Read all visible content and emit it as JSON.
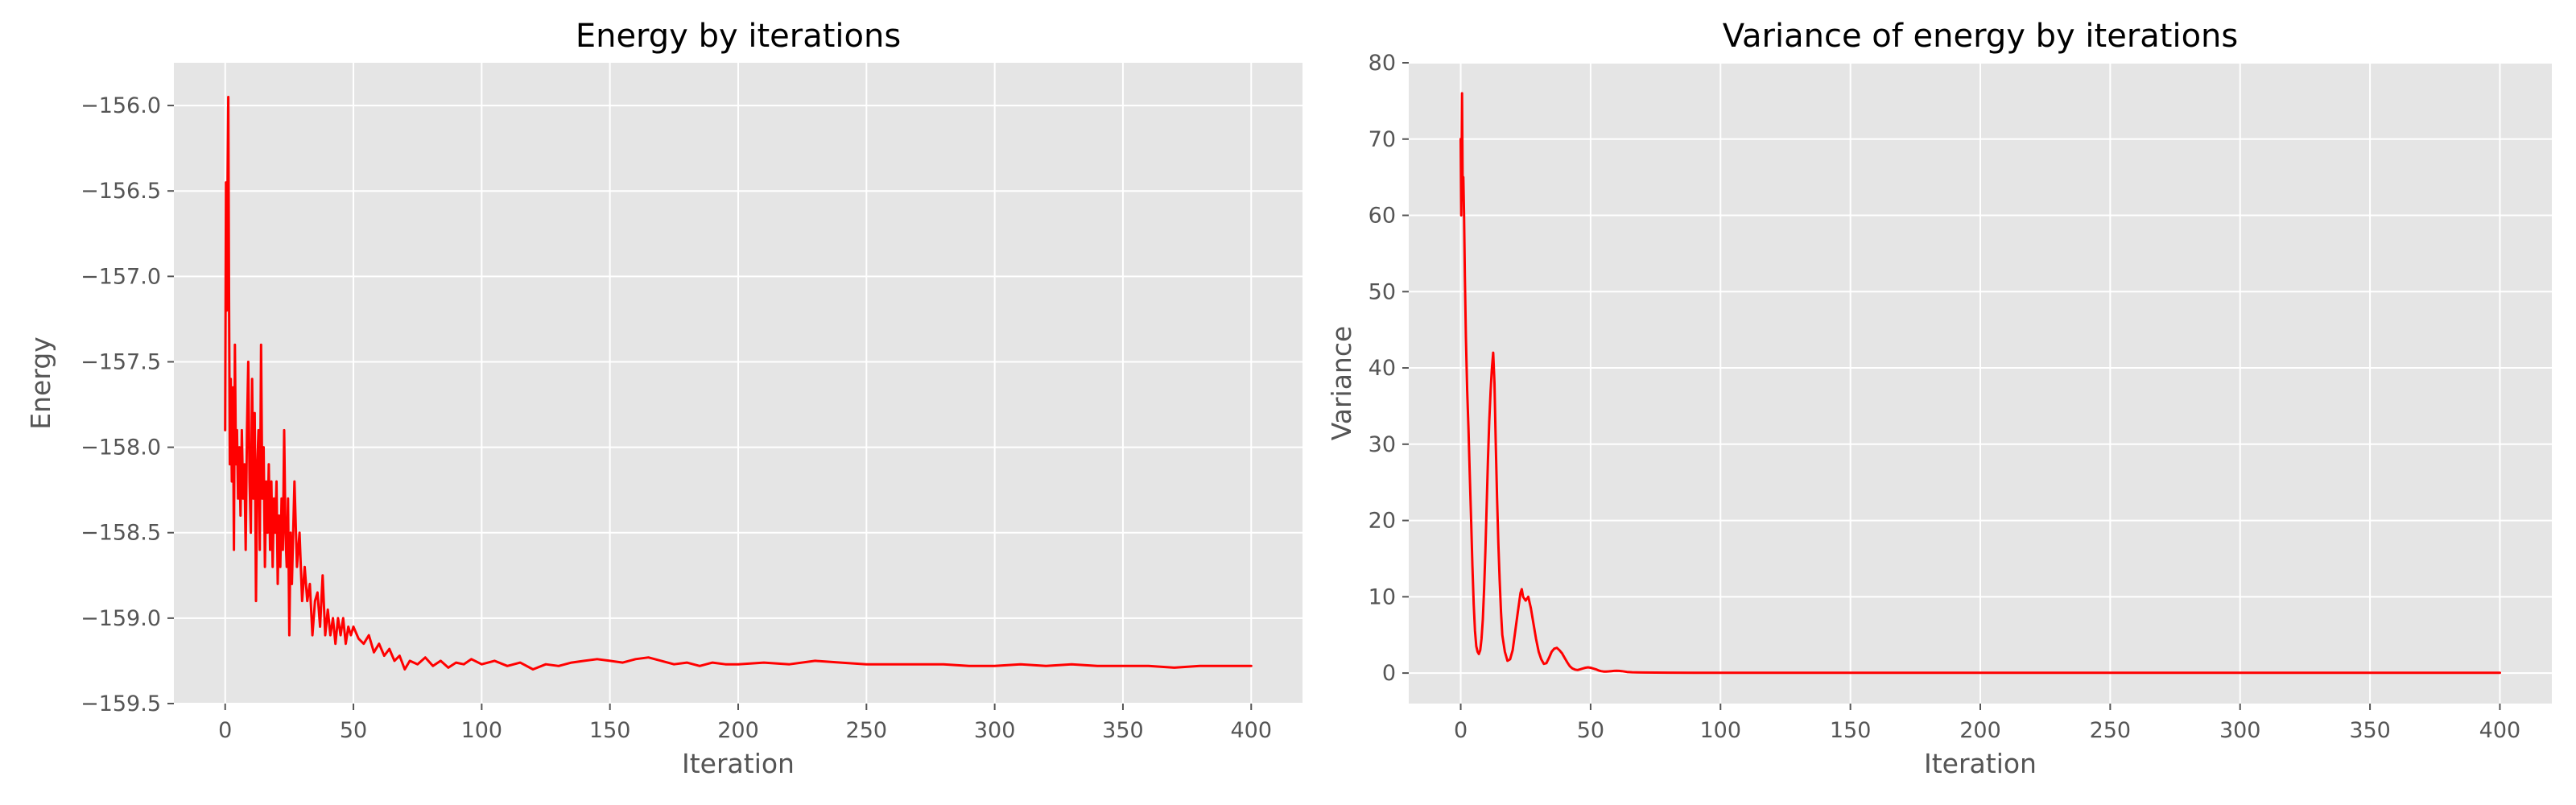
{
  "chart_data": [
    {
      "type": "line",
      "title": "Energy by iterations",
      "xlabel": "Iteration",
      "ylabel": "Energy",
      "xlim": [
        -20,
        420
      ],
      "ylim": [
        -159.5,
        -155.75
      ],
      "x_ticks": [
        0,
        50,
        100,
        150,
        200,
        250,
        300,
        350,
        400
      ],
      "y_ticks": [
        -159.5,
        -159.0,
        -158.5,
        -158.0,
        -157.5,
        -157.0,
        -156.5,
        -156.0
      ],
      "y_tick_labels": [
        "−159.5",
        "−159.0",
        "−158.5",
        "−158.0",
        "−157.5",
        "−157.0",
        "−156.5",
        "−156.0"
      ],
      "grid": true,
      "series": [
        {
          "color": "#ff0000",
          "points": [
            [
              0,
              -157.9
            ],
            [
              0.3,
              -156.45
            ],
            [
              0.6,
              -157.2
            ],
            [
              0.9,
              -156.5
            ],
            [
              1.2,
              -155.95
            ],
            [
              1.5,
              -157.1
            ],
            [
              1.8,
              -158.1
            ],
            [
              2.2,
              -157.6
            ],
            [
              2.6,
              -158.2
            ],
            [
              3.0,
              -157.65
            ],
            [
              3.4,
              -158.6
            ],
            [
              3.8,
              -157.4
            ],
            [
              4.2,
              -158.1
            ],
            [
              4.6,
              -157.9
            ],
            [
              5.0,
              -158.3
            ],
            [
              5.5,
              -158.0
            ],
            [
              6.0,
              -158.4
            ],
            [
              6.5,
              -157.9
            ],
            [
              7.0,
              -158.3
            ],
            [
              7.5,
              -158.1
            ],
            [
              8.0,
              -158.6
            ],
            [
              8.5,
              -157.9
            ],
            [
              9.0,
              -157.5
            ],
            [
              9.5,
              -158.2
            ],
            [
              10.0,
              -158.5
            ],
            [
              10.5,
              -157.6
            ],
            [
              11.0,
              -158.3
            ],
            [
              11.5,
              -157.8
            ],
            [
              12.0,
              -158.9
            ],
            [
              12.5,
              -158.1
            ],
            [
              13.0,
              -157.9
            ],
            [
              13.5,
              -158.6
            ],
            [
              14.0,
              -157.4
            ],
            [
              14.5,
              -158.3
            ],
            [
              15.0,
              -158.0
            ],
            [
              15.5,
              -158.7
            ],
            [
              16.0,
              -158.2
            ],
            [
              16.5,
              -158.5
            ],
            [
              17.0,
              -158.1
            ],
            [
              17.5,
              -158.6
            ],
            [
              18.0,
              -158.2
            ],
            [
              18.5,
              -158.7
            ],
            [
              19.0,
              -158.3
            ],
            [
              19.5,
              -158.5
            ],
            [
              20.0,
              -158.2
            ],
            [
              20.5,
              -158.8
            ],
            [
              21.0,
              -158.4
            ],
            [
              21.5,
              -158.7
            ],
            [
              22.0,
              -158.3
            ],
            [
              22.5,
              -158.6
            ],
            [
              23.0,
              -157.9
            ],
            [
              23.5,
              -158.5
            ],
            [
              24.0,
              -158.7
            ],
            [
              24.5,
              -158.3
            ],
            [
              25.0,
              -159.1
            ],
            [
              25.5,
              -158.5
            ],
            [
              26.0,
              -158.8
            ],
            [
              27.0,
              -158.2
            ],
            [
              28.0,
              -158.7
            ],
            [
              29.0,
              -158.5
            ],
            [
              30.0,
              -158.9
            ],
            [
              31.0,
              -158.7
            ],
            [
              32.0,
              -158.9
            ],
            [
              33.0,
              -158.8
            ],
            [
              34.0,
              -159.1
            ],
            [
              35.0,
              -158.9
            ],
            [
              36.0,
              -158.85
            ],
            [
              37.0,
              -159.05
            ],
            [
              38.0,
              -158.75
            ],
            [
              39.0,
              -159.1
            ],
            [
              40.0,
              -158.95
            ],
            [
              41.0,
              -159.1
            ],
            [
              42.0,
              -159.0
            ],
            [
              43.0,
              -159.15
            ],
            [
              44.0,
              -159.0
            ],
            [
              45.0,
              -159.1
            ],
            [
              46.0,
              -159.0
            ],
            [
              47.0,
              -159.15
            ],
            [
              48.0,
              -159.05
            ],
            [
              49.0,
              -159.1
            ],
            [
              50.0,
              -159.05
            ],
            [
              52.0,
              -159.12
            ],
            [
              54.0,
              -159.15
            ],
            [
              56.0,
              -159.1
            ],
            [
              58.0,
              -159.2
            ],
            [
              60.0,
              -159.15
            ],
            [
              62.0,
              -159.22
            ],
            [
              64.0,
              -159.18
            ],
            [
              66.0,
              -159.25
            ],
            [
              68.0,
              -159.22
            ],
            [
              70.0,
              -159.3
            ],
            [
              72.0,
              -159.25
            ],
            [
              75.0,
              -159.27
            ],
            [
              78.0,
              -159.23
            ],
            [
              81.0,
              -159.28
            ],
            [
              84.0,
              -159.25
            ],
            [
              87.0,
              -159.29
            ],
            [
              90.0,
              -159.26
            ],
            [
              93.0,
              -159.27
            ],
            [
              96.0,
              -159.24
            ],
            [
              100.0,
              -159.27
            ],
            [
              105.0,
              -159.25
            ],
            [
              110.0,
              -159.28
            ],
            [
              115.0,
              -159.26
            ],
            [
              120.0,
              -159.3
            ],
            [
              125.0,
              -159.27
            ],
            [
              130.0,
              -159.28
            ],
            [
              135.0,
              -159.26
            ],
            [
              140.0,
              -159.25
            ],
            [
              145.0,
              -159.24
            ],
            [
              150.0,
              -159.25
            ],
            [
              155.0,
              -159.26
            ],
            [
              160.0,
              -159.24
            ],
            [
              165.0,
              -159.23
            ],
            [
              170.0,
              -159.25
            ],
            [
              175.0,
              -159.27
            ],
            [
              180.0,
              -159.26
            ],
            [
              185.0,
              -159.28
            ],
            [
              190.0,
              -159.26
            ],
            [
              195.0,
              -159.27
            ],
            [
              200.0,
              -159.27
            ],
            [
              210.0,
              -159.26
            ],
            [
              220.0,
              -159.27
            ],
            [
              230.0,
              -159.25
            ],
            [
              240.0,
              -159.26
            ],
            [
              250.0,
              -159.27
            ],
            [
              260.0,
              -159.27
            ],
            [
              270.0,
              -159.27
            ],
            [
              280.0,
              -159.27
            ],
            [
              290.0,
              -159.28
            ],
            [
              300.0,
              -159.28
            ],
            [
              310.0,
              -159.27
            ],
            [
              320.0,
              -159.28
            ],
            [
              330.0,
              -159.27
            ],
            [
              340.0,
              -159.28
            ],
            [
              350.0,
              -159.28
            ],
            [
              360.0,
              -159.28
            ],
            [
              370.0,
              -159.29
            ],
            [
              380.0,
              -159.28
            ],
            [
              390.0,
              -159.28
            ],
            [
              400.0,
              -159.28
            ]
          ]
        }
      ]
    },
    {
      "type": "line",
      "title": "Variance of energy by iterations",
      "xlabel": "Iteration",
      "ylabel": "Variance",
      "xlim": [
        -20,
        420
      ],
      "ylim": [
        -4,
        80
      ],
      "x_ticks": [
        0,
        50,
        100,
        150,
        200,
        250,
        300,
        350,
        400
      ],
      "y_ticks": [
        0,
        10,
        20,
        30,
        40,
        50,
        60,
        70,
        80
      ],
      "y_tick_labels": [
        "0",
        "10",
        "20",
        "30",
        "40",
        "50",
        "60",
        "70",
        "80"
      ],
      "grid": true,
      "series": [
        {
          "color": "#ff0000",
          "points": [
            [
              0,
              70
            ],
            [
              0.2,
              60
            ],
            [
              0.5,
              76
            ],
            [
              0.8,
              62
            ],
            [
              1.0,
              65
            ],
            [
              1.3,
              60
            ],
            [
              1.6,
              52
            ],
            [
              2.0,
              44
            ],
            [
              2.5,
              37
            ],
            [
              3.0,
              32
            ],
            [
              3.5,
              26
            ],
            [
              4.0,
              20
            ],
            [
              4.5,
              14
            ],
            [
              5.0,
              9
            ],
            [
              5.5,
              5.5
            ],
            [
              6.0,
              3.5
            ],
            [
              6.5,
              2.8
            ],
            [
              7.0,
              2.5
            ],
            [
              7.5,
              3.0
            ],
            [
              8.0,
              4.5
            ],
            [
              8.5,
              7
            ],
            [
              9.0,
              11
            ],
            [
              9.5,
              16
            ],
            [
              10.0,
              22
            ],
            [
              10.5,
              28
            ],
            [
              11.0,
              33
            ],
            [
              11.5,
              37
            ],
            [
              12.0,
              40
            ],
            [
              12.5,
              42
            ],
            [
              13.0,
              38
            ],
            [
              13.5,
              30
            ],
            [
              14.0,
              23
            ],
            [
              14.5,
              17
            ],
            [
              15.0,
              12
            ],
            [
              15.5,
              8
            ],
            [
              16.0,
              5
            ],
            [
              17.0,
              2.8
            ],
            [
              18.0,
              1.6
            ],
            [
              19.0,
              1.8
            ],
            [
              20.0,
              3
            ],
            [
              21.0,
              5.5
            ],
            [
              22.0,
              8
            ],
            [
              23.0,
              10.5
            ],
            [
              23.5,
              11
            ],
            [
              24.0,
              10
            ],
            [
              25.0,
              9.5
            ],
            [
              26.0,
              10
            ],
            [
              27.0,
              8.5
            ],
            [
              28.0,
              6.5
            ],
            [
              29.0,
              4.5
            ],
            [
              30.0,
              2.8
            ],
            [
              31.0,
              1.8
            ],
            [
              32.0,
              1.2
            ],
            [
              33.0,
              1.3
            ],
            [
              34.0,
              2.0
            ],
            [
              35.0,
              2.8
            ],
            [
              36.0,
              3.2
            ],
            [
              37.0,
              3.3
            ],
            [
              38.0,
              3.0
            ],
            [
              39.0,
              2.6
            ],
            [
              40.0,
              2.0
            ],
            [
              41.0,
              1.4
            ],
            [
              42.0,
              0.9
            ],
            [
              43.0,
              0.6
            ],
            [
              44.0,
              0.45
            ],
            [
              45.0,
              0.4
            ],
            [
              46.0,
              0.5
            ],
            [
              47.0,
              0.6
            ],
            [
              48.0,
              0.7
            ],
            [
              49.0,
              0.75
            ],
            [
              50.0,
              0.7
            ],
            [
              51.0,
              0.6
            ],
            [
              52.0,
              0.5
            ],
            [
              53.0,
              0.35
            ],
            [
              54.0,
              0.25
            ],
            [
              55.0,
              0.2
            ],
            [
              56.0,
              0.2
            ],
            [
              57.0,
              0.22
            ],
            [
              58.0,
              0.25
            ],
            [
              59.0,
              0.28
            ],
            [
              60.0,
              0.3
            ],
            [
              61.0,
              0.28
            ],
            [
              62.0,
              0.25
            ],
            [
              63.0,
              0.2
            ],
            [
              64.0,
              0.15
            ],
            [
              66.0,
              0.1
            ],
            [
              70.0,
              0.07
            ],
            [
              80.0,
              0.05
            ],
            [
              90.0,
              0.04
            ],
            [
              100.0,
              0.03
            ],
            [
              120.0,
              0.03
            ],
            [
              150.0,
              0.03
            ],
            [
              200.0,
              0.03
            ],
            [
              250.0,
              0.03
            ],
            [
              300.0,
              0.03
            ],
            [
              350.0,
              0.03
            ],
            [
              400.0,
              0.03
            ]
          ]
        }
      ]
    }
  ]
}
